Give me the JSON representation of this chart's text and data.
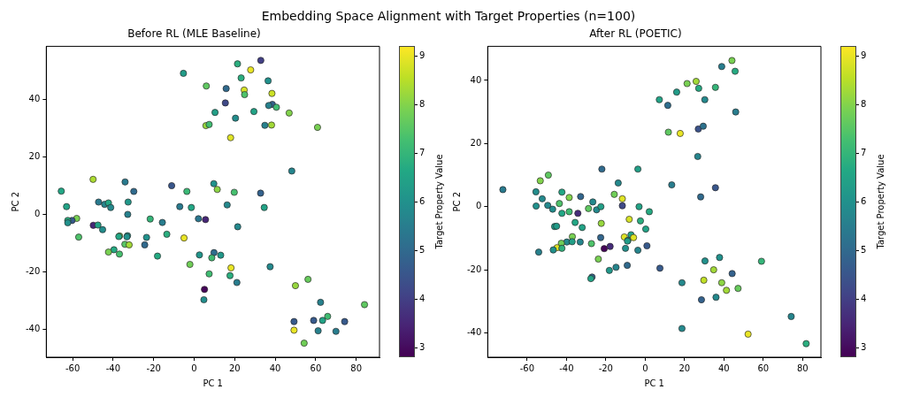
{
  "chart_data": [
    {
      "type": "scatter",
      "title": "Before RL (MLE Baseline)",
      "xlabel": "PC 1",
      "ylabel": "PC 2",
      "clabel": "Target Property Value",
      "marker": "circle",
      "annotations": [
        "Embedding Space Alignment with Target Properties (n=100)"
      ],
      "xlim": [
        -73,
        91.5
      ],
      "ylim": [
        -49.6,
        58.6
      ],
      "xticks": [
        -60,
        -40,
        -20,
        0,
        20,
        40,
        60,
        80
      ],
      "yticks": [
        -40,
        -20,
        0,
        20,
        40
      ],
      "clim": [
        2.8,
        9.2
      ],
      "cticks": [
        3,
        4,
        5,
        6,
        7,
        8,
        9
      ],
      "x": [
        32.9,
        21.4,
        27.9,
        -5.3,
        23.2,
        36.5,
        6.0,
        15.8,
        24.7,
        38.4,
        24.9,
        15.4,
        38.6,
        36.8,
        40.6,
        10.3,
        29.5,
        46.9,
        20.4,
        5.8,
        7.4,
        34.9,
        38.2,
        60.9,
        18.0,
        48.2,
        -49.9,
        -34.1,
        -65.6,
        -29.8,
        -11.1,
        -3.6,
        9.7,
        11.4,
        19.8,
        32.8,
        -47.2,
        -44.2,
        -42.3,
        -41.2,
        -32.6,
        -63.0,
        -7.1,
        -1.4,
        16.3,
        34.6,
        -32.8,
        -58.0,
        -60.3,
        -62.4,
        -62.4,
        -21.7,
        2.1,
        5.6,
        -49.8,
        -47.5,
        -15.7,
        21.5,
        -45.2,
        -57.0,
        -36.8,
        -32.9,
        -33.2,
        -37.2,
        -23.5,
        -13.5,
        -5.0,
        -34.2,
        -32.1,
        -24.4,
        -39.6,
        -42.3,
        -36.9,
        -18.1,
        2.6,
        9.8,
        8.7,
        13.1,
        -2.1,
        18.2,
        37.5,
        7.4,
        17.7,
        21.1,
        56.2,
        50.0,
        5.1,
        4.8,
        62.4,
        84.1,
        65.9,
        49.3,
        59.0,
        63.4,
        74.3,
        49.3,
        61.2,
        70.0,
        54.3
      ],
      "values": [
        53.7,
        52.5,
        50.4,
        49.2,
        47.6,
        46.6,
        44.8,
        43.9,
        43.4,
        42.2,
        41.8,
        38.9,
        38.4,
        38.0,
        37.4,
        35.6,
        35.9,
        35.4,
        33.6,
        31.0,
        31.4,
        31.1,
        31.2,
        30.4,
        26.8,
        15.2,
        12.3,
        11.4,
        8.2,
        8.1,
        10.1,
        8.1,
        10.8,
        8.8,
        7.8,
        7.5,
        4.4,
        3.6,
        4.1,
        2.5,
        4.4,
        2.8,
        2.8,
        2.5,
        3.4,
        2.5,
        0.1,
        -1.3,
        -2.0,
        -2.0,
        -2.8,
        -1.5,
        -1.4,
        -1.7,
        -3.7,
        -3.6,
        -2.7,
        -4.2,
        -5.2,
        -7.8,
        -7.4,
        -7.3,
        -7.7,
        -7.6,
        -7.9,
        -6.8,
        -8.1,
        -10.3,
        -10.5,
        -10.5,
        -12.2,
        -13.0,
        -13.7,
        -14.4,
        -14.0,
        -13.2,
        -15.0,
        -14.1,
        -17.3,
        -18.5,
        -18.1,
        -20.6,
        -21.2,
        -23.6,
        -22.5,
        -24.7,
        -26.0,
        -29.6,
        -30.5,
        -31.3,
        -35.4,
        -37.2,
        -36.8,
        -36.8,
        -37.2,
        -40.2,
        -40.4,
        -40.6,
        -44.7
      ],
      "cvalues": [
        4.0,
        6.8,
        9.0,
        6.3,
        6.8,
        6.0,
        7.6,
        5.0,
        8.8,
        8.7,
        7.4,
        4.2,
        4.8,
        5.6,
        7.2,
        6.4,
        6.5,
        8.0,
        5.9,
        8.2,
        7.2,
        5.6,
        8.3,
        7.9,
        8.9,
        5.7,
        8.4,
        5.4,
        6.6,
        5.0,
        4.5,
        7.1,
        6.0,
        8.1,
        7.3,
        4.8,
        5.4,
        5.7,
        6.6,
        5.8,
        6.2,
        6.5,
        5.4,
        6.6,
        5.8,
        6.5,
        5.6,
        7.9,
        4.6,
        6.8,
        6.0,
        7.0,
        5.3,
        3.5,
        3.5,
        6.5,
        5.5,
        5.8,
        5.9,
        7.4,
        8.0,
        6.2,
        6.0,
        6.6,
        6.0,
        6.8,
        9.0,
        7.5,
        8.3,
        5.0,
        6.7,
        7.9,
        7.3,
        6.7,
        6.1,
        5.1,
        7.2,
        6.2,
        7.8,
        9.0,
        5.8,
        7.2,
        6.8,
        5.5,
        7.7,
        8.2,
        2.9,
        5.9,
        5.6,
        7.6,
        7.2,
        4.6,
        4.6,
        6.5,
        4.6,
        9.0,
        5.6,
        5.5,
        7.8
      ]
    },
    {
      "type": "scatter",
      "title": "After RL (POETIC)",
      "xlabel": "PC 1",
      "ylabel": "PC 2",
      "clabel": "Target Property Value",
      "marker": "circle",
      "xlim": [
        -80,
        89.3
      ],
      "ylim": [
        -47.7,
        50.8
      ],
      "xticks": [
        -60,
        -40,
        -20,
        0,
        20,
        40,
        60,
        80
      ],
      "yticks": [
        -40,
        -20,
        0,
        20,
        40
      ],
      "clim": [
        2.8,
        9.2
      ],
      "cticks": [
        3,
        4,
        5,
        6,
        7,
        8,
        9
      ],
      "x": [
        44.1,
        38.9,
        45.7,
        21.3,
        25.9,
        27.2,
        35.7,
        16.0,
        7.2,
        11.5,
        30.3,
        46.0,
        27.0,
        29.5,
        11.8,
        17.8,
        26.7,
        -22.0,
        -3.7,
        -49.2,
        -53.3,
        -13.7,
        13.5,
        35.7,
        -72.3,
        -55.5,
        -42.3,
        -15.7,
        -32.8,
        -38.6,
        -11.6,
        -52.3,
        28.2,
        -26.6,
        -55.4,
        -49.5,
        -47.0,
        -43.6,
        -42.3,
        -38.6,
        -34.2,
        -28.8,
        -24.7,
        -22.5,
        -11.6,
        -3.1,
        2.1,
        -46.0,
        -45.0,
        -35.6,
        -32.0,
        -22.3,
        -8.1,
        -2.4,
        0.3,
        -37.0,
        -39.8,
        -37.1,
        -33.0,
        -42.6,
        -44.8,
        -42.3,
        -46.7,
        -54.1,
        -27.3,
        -22.6,
        -20.8,
        -17.8,
        -10.6,
        -8.8,
        -9.0,
        -7.2,
        -5.9,
        -10.0,
        -3.7,
        0.9,
        -23.8,
        -18.2,
        -14.8,
        -9.1,
        -27.0,
        -27.6,
        7.5,
        18.7,
        30.4,
        37.8,
        34.8,
        44.2,
        29.8,
        38.9,
        41.3,
        47.2,
        36.0,
        28.6,
        59.1,
        74.2,
        18.7,
        52.3,
        81.8
      ],
      "values": [
        46.3,
        44.4,
        42.9,
        39.0,
        39.7,
        37.5,
        37.8,
        36.3,
        33.9,
        32.1,
        33.9,
        30.0,
        24.6,
        25.5,
        23.6,
        23.2,
        15.9,
        11.9,
        11.9,
        10.0,
        8.2,
        7.5,
        6.9,
        6.0,
        5.4,
        4.7,
        4.6,
        3.9,
        3.2,
        2.9,
        2.5,
        2.5,
        3.1,
        1.5,
        0.2,
        0.4,
        -0.8,
        1.0,
        -2.1,
        -1.6,
        -2.1,
        -0.6,
        -1.0,
        0.0,
        0.3,
        0.0,
        -1.6,
        -6.3,
        -6.2,
        -5.0,
        -6.6,
        -5.3,
        -4.0,
        -4.5,
        -7.1,
        -9.5,
        -11.2,
        -11.1,
        -11.2,
        -11.6,
        -13.0,
        -13.2,
        -13.7,
        -14.4,
        -11.7,
        -9.8,
        -13.3,
        -12.6,
        -9.6,
        -10.7,
        -10.9,
        -8.9,
        -9.8,
        -13.2,
        -13.8,
        -12.4,
        -16.6,
        -20.2,
        -19.2,
        -18.6,
        -22.3,
        -22.8,
        -19.5,
        -24.1,
        -17.2,
        -16.1,
        -20.0,
        -21.2,
        -23.3,
        -24.1,
        -26.5,
        -25.9,
        -28.7,
        -29.5,
        -17.3,
        -34.8,
        -38.6,
        -40.4,
        -43.4
      ],
      "cvalues": [
        7.9,
        5.5,
        6.7,
        7.9,
        8.3,
        6.7,
        7.0,
        6.3,
        6.5,
        5.1,
        5.8,
        5.5,
        4.4,
        5.2,
        7.6,
        9.0,
        5.7,
        5.0,
        6.4,
        7.6,
        8.0,
        5.8,
        5.5,
        4.5,
        5.4,
        5.9,
        6.6,
        7.8,
        4.9,
        8.0,
        8.9,
        5.8,
        5.0,
        5.8,
        6.0,
        5.8,
        5.9,
        7.4,
        6.6,
        7.2,
        3.6,
        7.6,
        5.8,
        6.4,
        4.2,
        6.5,
        6.7,
        6.3,
        6.3,
        6.6,
        6.5,
        8.2,
        8.8,
        6.8,
        6.5,
        7.9,
        5.8,
        6.4,
        5.7,
        7.8,
        8.9,
        6.9,
        6.0,
        5.6,
        7.4,
        4.9,
        2.9,
        3.6,
        8.9,
        6.8,
        6.3,
        6.5,
        8.9,
        6.0,
        5.7,
        4.6,
        7.9,
        6.2,
        5.7,
        5.0,
        4.8,
        6.5,
        4.6,
        5.8,
        6.0,
        6.0,
        8.3,
        4.8,
        8.6,
        8.1,
        8.3,
        7.7,
        5.8,
        4.8,
        7.0,
        5.7,
        5.8,
        9.0,
        6.8
      ]
    }
  ]
}
